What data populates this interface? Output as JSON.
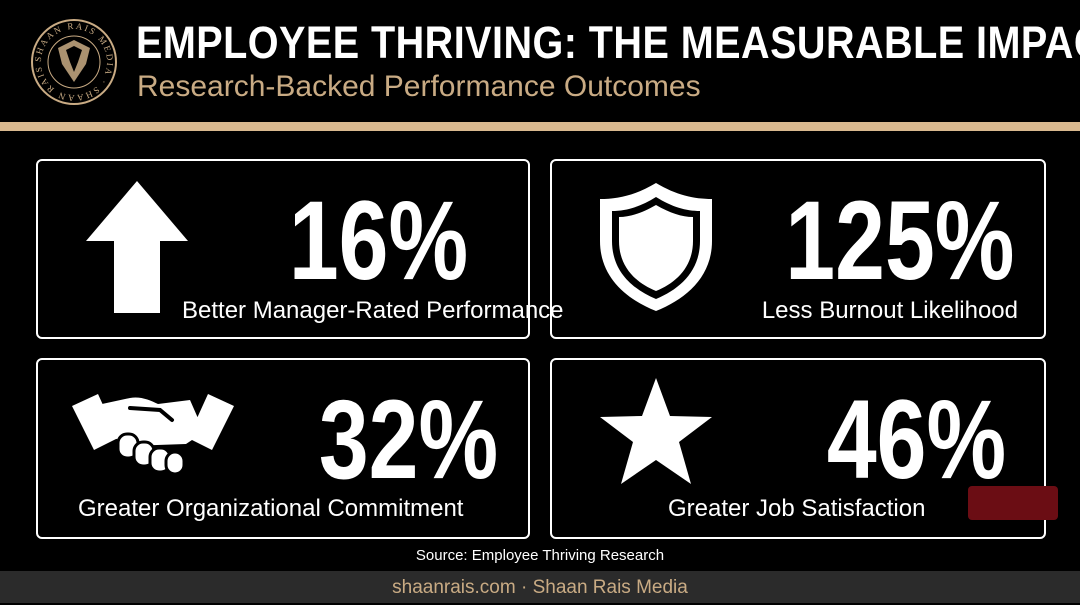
{
  "header": {
    "title": "EMPLOYEE THRIVING: THE MEASURABLE IMPACT",
    "subtitle": "Research-Backed Performance Outcomes",
    "logo_text": "SHAAN RAIS MEDIA"
  },
  "stats": [
    {
      "value": "16%",
      "label": "Better Manager-Rated Performance",
      "icon": "arrow-up-icon"
    },
    {
      "value": "125%",
      "label": "Less Burnout Likelihood",
      "icon": "shield-icon"
    },
    {
      "value": "32%",
      "label": "Greater Organizational Commitment",
      "icon": "handshake-icon"
    },
    {
      "value": "46%",
      "label": "Greater Job Satisfaction",
      "icon": "star-icon"
    }
  ],
  "source": "Source: Employee Thriving Research",
  "footer": "shaanrais.com · Shaan Rais Media",
  "colors": {
    "background": "#000000",
    "accent": "#d9b98f",
    "subtitle": "#c9ab84",
    "footer_bg": "#2b2b2b",
    "text": "#ffffff"
  }
}
